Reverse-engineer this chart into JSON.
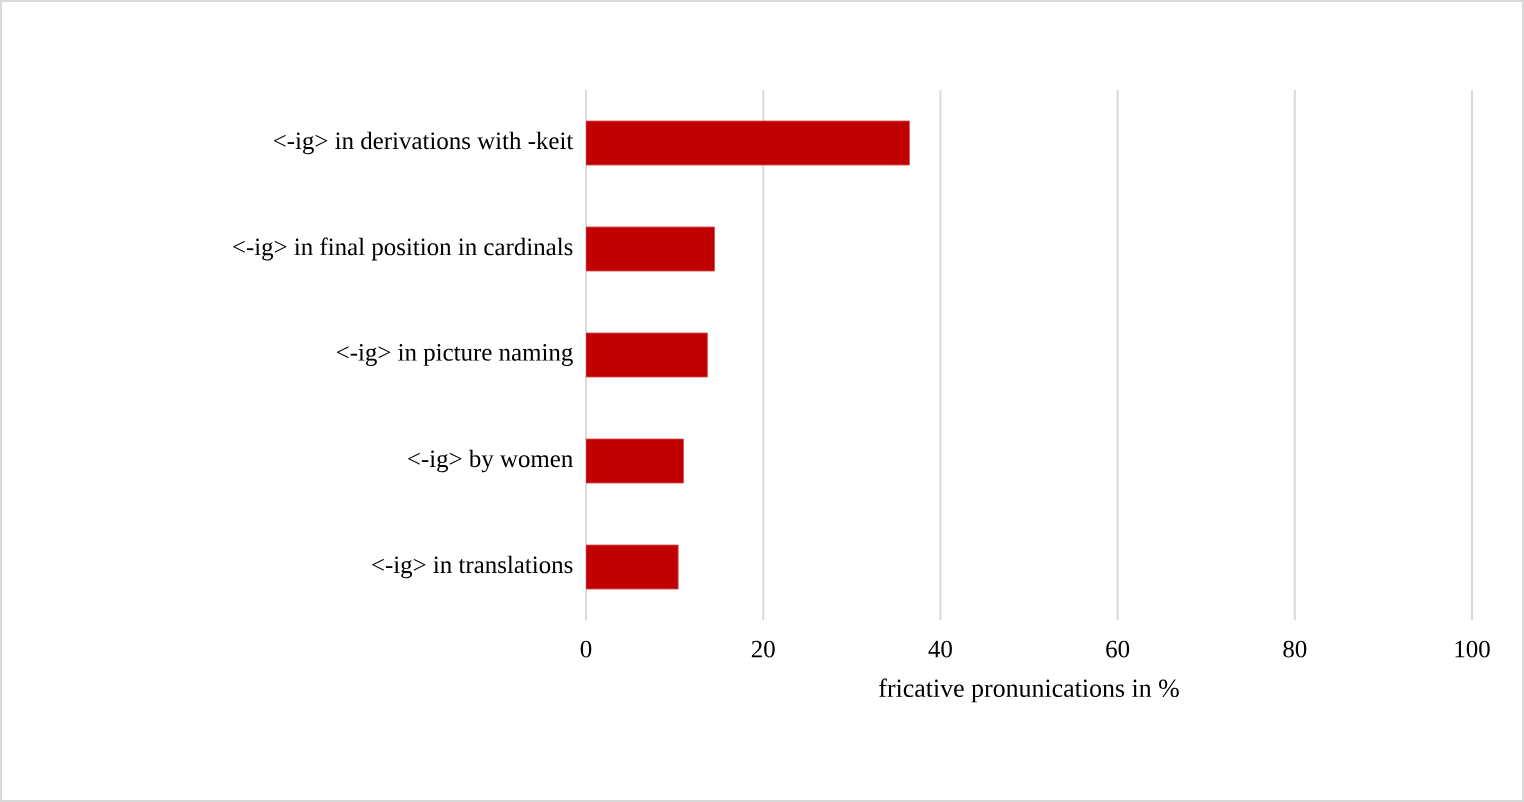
{
  "chart_data": {
    "type": "bar",
    "orientation": "horizontal",
    "categories": [
      "<-ig> in derivations with -keit",
      "<-ig>  in final position in cardinals",
      "<-ig> in picture naming",
      "<-ig> by women",
      "<-ig> in translations"
    ],
    "values": [
      36.5,
      14.5,
      13.7,
      11.0,
      10.4
    ],
    "color": "#c00000",
    "xlabel": "fricative pronunications in %",
    "xlim": [
      0,
      100
    ],
    "xticks": [
      0,
      20,
      40,
      60,
      80,
      100
    ],
    "grid": "x"
  }
}
